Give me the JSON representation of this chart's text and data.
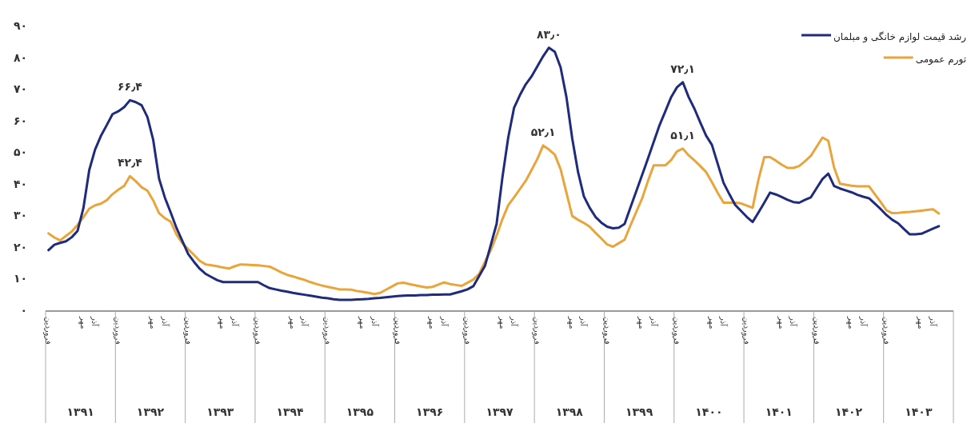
{
  "chart_data": {
    "type": "line",
    "categories": [
      "فروردین",
      null,
      null,
      null,
      null,
      null,
      "مهر",
      null,
      "آذر",
      null,
      null,
      null,
      "فروردین",
      null,
      null,
      null,
      null,
      null,
      "مهر",
      null,
      "آذر",
      null,
      null,
      null,
      "فروردین",
      null,
      null,
      null,
      null,
      null,
      "مهر",
      null,
      "آذر",
      null,
      null,
      null,
      "فروردین",
      null,
      null,
      null,
      null,
      null,
      "مهر",
      null,
      "آذر",
      null,
      null,
      null,
      "فروردین",
      null,
      null,
      null,
      null,
      null,
      "مهر",
      null,
      "آذر",
      null,
      null,
      null,
      "فروردین",
      null,
      null,
      null,
      null,
      null,
      "مهر",
      null,
      "آذر",
      null,
      null,
      null,
      "فروردین",
      null,
      null,
      null,
      null,
      null,
      "مهر",
      null,
      "آذر",
      null,
      null,
      null,
      "فروردین",
      null,
      null,
      null,
      null,
      null,
      "مهر",
      null,
      "آذر",
      null,
      null,
      null,
      "فروردین",
      null,
      null,
      null,
      null,
      null,
      "مهر",
      null,
      "آذر",
      null,
      null,
      null,
      "فروردین",
      null,
      null,
      null,
      null,
      null,
      "مهر",
      null,
      "آذر",
      null,
      null,
      null,
      "فروردین",
      null,
      null,
      null,
      null,
      null,
      "مهر",
      null,
      "آذر",
      null,
      null,
      null,
      "فروردین",
      null,
      null,
      null,
      null,
      null,
      "مهر",
      null,
      "آذر",
      null,
      null,
      null,
      "فروردین",
      null,
      null,
      null,
      null,
      null,
      "مهر",
      null,
      "آذر",
      null,
      null,
      null
    ],
    "series": [
      {
        "name": "رشد قیمت لوازم خانگی و مبلمان",
        "color": "#1f2b7b",
        "values": [
          19,
          20.7,
          21.3,
          21.8,
          23.1,
          25.1,
          32.3,
          44.3,
          50.8,
          55.1,
          58.5,
          62,
          62.9,
          64.2,
          66.4,
          65.8,
          64.8,
          61.1,
          53.8,
          41.6,
          35.6,
          30.9,
          26,
          21.9,
          17.8,
          15.3,
          13.1,
          11.5,
          10.5,
          9.5,
          8.9,
          8.9,
          8.9,
          8.9,
          8.9,
          8.9,
          8.9,
          7.9,
          7,
          6.6,
          6.2,
          5.9,
          5.5,
          5.2,
          4.9,
          4.6,
          4.3,
          4,
          3.8,
          3.5,
          3.3,
          3.3,
          3.3,
          3.4,
          3.5,
          3.6,
          3.8,
          3.9,
          4.1,
          4.3,
          4.5,
          4.6,
          4.7,
          4.7,
          4.8,
          4.8,
          4.9,
          4.9,
          5,
          5,
          5.5,
          6,
          6.6,
          7.6,
          10.8,
          14,
          20.6,
          27.3,
          42,
          54.6,
          64,
          68,
          71.4,
          73.9,
          77.1,
          80.3,
          83.0,
          81.7,
          76.8,
          67.4,
          54.3,
          43.7,
          36,
          32.4,
          29.5,
          27.7,
          26.4,
          25.9,
          26.1,
          27.3,
          32.5,
          37.6,
          42.7,
          47.9,
          53.2,
          58.5,
          62.9,
          67.4,
          70.5,
          72.1,
          67.4,
          63.7,
          59.4,
          55.2,
          52.3,
          46.3,
          40.3,
          36.7,
          33.3,
          31.4,
          29.5,
          27.9,
          30.9,
          34,
          37.2,
          36.6,
          35.8,
          34.9,
          34.2,
          34,
          34.9,
          35.7,
          38.6,
          41.5,
          43.2,
          39.3,
          38.5,
          37.9,
          37.3,
          36.5,
          35.9,
          35.4,
          33.7,
          32,
          30.1,
          28.6,
          27.5,
          25.7,
          24,
          24,
          24.2,
          25,
          25.8,
          26.6,
          null,
          null
        ],
        "value_labels": [
          null,
          null,
          null,
          null,
          null,
          null,
          null,
          null,
          null,
          null,
          null,
          null,
          null,
          null,
          "۶۶٫۴",
          null,
          null,
          null,
          null,
          null,
          null,
          null,
          null,
          null,
          null,
          null,
          null,
          null,
          null,
          null,
          null,
          null,
          null,
          null,
          null,
          null,
          null,
          null,
          null,
          null,
          null,
          null,
          null,
          null,
          null,
          null,
          null,
          null,
          null,
          null,
          null,
          null,
          null,
          null,
          null,
          null,
          null,
          null,
          null,
          null,
          null,
          null,
          null,
          null,
          null,
          null,
          null,
          null,
          null,
          null,
          null,
          null,
          null,
          null,
          null,
          null,
          null,
          null,
          null,
          null,
          null,
          null,
          null,
          null,
          null,
          null,
          "۸۳٫۰",
          null,
          null,
          null,
          null,
          null,
          null,
          null,
          null,
          null,
          null,
          null,
          null,
          null,
          null,
          null,
          null,
          null,
          null,
          null,
          null,
          null,
          null,
          "۷۲٫۱",
          null,
          null,
          null,
          null,
          null,
          null,
          null,
          null,
          null,
          null,
          null,
          null,
          null,
          null,
          null,
          null,
          null,
          null,
          null,
          null,
          null,
          null,
          null,
          null,
          null,
          null,
          null,
          null,
          null,
          null,
          null,
          null,
          null,
          null,
          null,
          null,
          null,
          null,
          null,
          null,
          null,
          null,
          null,
          null,
          null,
          null
        ]
      },
      {
        "name": "تورم عمومی",
        "color": "#e9a53a",
        "values": [
          24.3,
          23,
          22.1,
          23.5,
          24.9,
          27,
          29.4,
          32.1,
          33.2,
          33.7,
          34.8,
          36.7,
          38.1,
          39.3,
          42.4,
          40.8,
          38.9,
          37.8,
          34.7,
          30.7,
          29.1,
          28,
          23.9,
          21.2,
          19.3,
          17.5,
          15.6,
          14.5,
          14.2,
          13.9,
          13.5,
          13.2,
          13.9,
          14.5,
          14.4,
          14.3,
          14.2,
          14,
          13.8,
          12.9,
          12,
          11.2,
          10.7,
          10.1,
          9.6,
          8.9,
          8.3,
          7.8,
          7.4,
          7,
          6.6,
          6.6,
          6.5,
          6.1,
          5.8,
          5.5,
          5.1,
          5.5,
          6.5,
          7.5,
          8.5,
          8.7,
          8.3,
          7.9,
          7.5,
          7.2,
          7.4,
          8.1,
          8.8,
          8.3,
          8,
          7.7,
          8.7,
          9.7,
          11.5,
          15.3,
          19,
          23.6,
          28.8,
          33.2,
          35.7,
          38.3,
          40.9,
          44.3,
          47.8,
          52.1,
          50.8,
          49.2,
          44.6,
          37.2,
          29.8,
          28.6,
          27.6,
          26.4,
          24.5,
          22.7,
          20.8,
          20.1,
          21.2,
          22.3,
          26.8,
          31.1,
          35.3,
          40.8,
          45.8,
          45.8,
          45.8,
          47.5,
          50.2,
          51.1,
          49,
          47.4,
          45.6,
          43.7,
          40.5,
          37.1,
          34,
          34,
          34,
          33.8,
          33.1,
          32.4,
          41.3,
          48.4,
          48.4,
          47.3,
          46,
          45,
          45,
          45.6,
          47.1,
          48.8,
          51.7,
          54.6,
          53.6,
          45.1,
          40,
          39.7,
          39.4,
          39.2,
          39.2,
          39.2,
          36.7,
          34.2,
          31.6,
          30.7,
          30.8,
          31,
          31.1,
          31.3,
          31.5,
          31.7,
          31.9,
          30.6,
          null,
          null
        ],
        "value_labels": [
          null,
          null,
          null,
          null,
          null,
          null,
          null,
          null,
          null,
          null,
          null,
          null,
          null,
          null,
          "۴۲٫۴",
          null,
          null,
          null,
          null,
          null,
          null,
          null,
          null,
          null,
          null,
          null,
          null,
          null,
          null,
          null,
          null,
          null,
          null,
          null,
          null,
          null,
          null,
          null,
          null,
          null,
          null,
          null,
          null,
          null,
          null,
          null,
          null,
          null,
          null,
          null,
          null,
          null,
          null,
          null,
          null,
          null,
          null,
          null,
          null,
          null,
          null,
          null,
          null,
          null,
          null,
          null,
          null,
          null,
          null,
          null,
          null,
          null,
          null,
          null,
          null,
          null,
          null,
          null,
          null,
          null,
          null,
          null,
          null,
          null,
          null,
          "۵۲٫۱",
          null,
          null,
          null,
          null,
          null,
          null,
          null,
          null,
          null,
          null,
          null,
          null,
          null,
          null,
          null,
          null,
          null,
          null,
          null,
          null,
          null,
          null,
          null,
          "۵۱٫۱",
          null,
          null,
          null,
          null,
          null,
          null,
          null,
          null,
          null,
          null,
          null,
          null,
          null,
          null,
          null,
          null,
          null,
          null,
          null,
          null,
          null,
          null,
          null,
          null,
          null,
          null,
          null,
          null,
          null,
          null,
          null,
          null,
          null,
          null,
          null,
          null,
          null,
          null,
          null,
          null,
          null,
          null,
          null,
          null,
          null,
          null
        ]
      }
    ],
    "ylim": [
      0,
      90
    ],
    "yticks": [
      {
        "value": 0,
        "label": "۰"
      },
      {
        "value": 10,
        "label": "۱۰"
      },
      {
        "value": 20,
        "label": "۲۰"
      },
      {
        "value": 30,
        "label": "۳۰"
      },
      {
        "value": 40,
        "label": "۴۰"
      },
      {
        "value": 50,
        "label": "۵۰"
      },
      {
        "value": 60,
        "label": "۶۰"
      },
      {
        "value": 70,
        "label": "۷۰"
      },
      {
        "value": 80,
        "label": "۸۰"
      },
      {
        "value": 90,
        "label": "۹۰"
      }
    ],
    "annotations": [
      "۱۳۹۱",
      "۱۳۹۲",
      "۱۳۹۳",
      "۱۳۹۴",
      "۱۳۹۵",
      "۱۳۹۶",
      "۱۳۹۷",
      "۱۳۹۸",
      "۱۳۹۹",
      "۱۴۰۰",
      "۱۴۰۱",
      "۱۴۰۲",
      "۱۴۰۳"
    ],
    "legend": "top right"
  }
}
